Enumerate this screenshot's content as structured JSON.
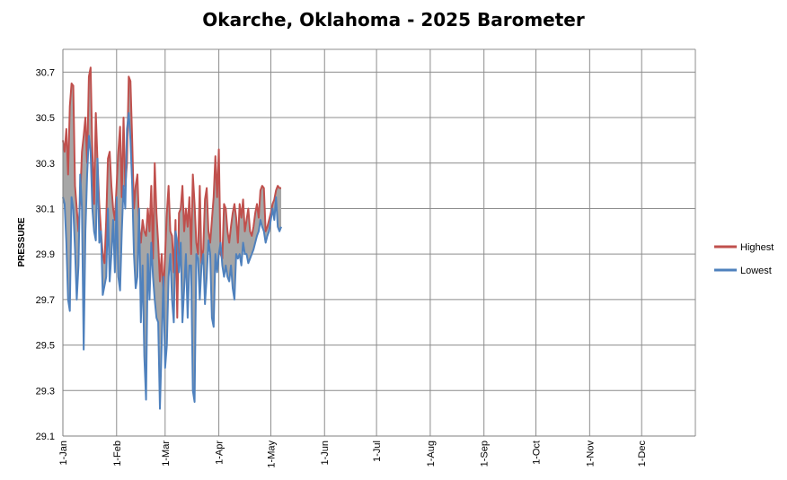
{
  "chart_data": {
    "type": "area",
    "title": "Okarche, Oklahoma - 2025 Barometer",
    "ylabel": "PRESSURE",
    "xlabel": "",
    "ylim": [
      29.1,
      30.8
    ],
    "y_ticks": [
      "29.1",
      "29.3",
      "29.5",
      "29.7",
      "29.9",
      "30.1",
      "30.3",
      "30.5",
      "30.7"
    ],
    "x_ticks": [
      {
        "label": "1-Jan",
        "day": 1
      },
      {
        "label": "1-Feb",
        "day": 32
      },
      {
        "label": "1-Mar",
        "day": 60
      },
      {
        "label": "1-Apr",
        "day": 91
      },
      {
        "label": "1-May",
        "day": 121
      },
      {
        "label": "1-Jun",
        "day": 152
      },
      {
        "label": "1-Jul",
        "day": 182
      },
      {
        "label": "1-Aug",
        "day": 213
      },
      {
        "label": "1-Sep",
        "day": 244
      },
      {
        "label": "1-Oct",
        "day": 274
      },
      {
        "label": "1-Nov",
        "day": 305
      },
      {
        "label": "1-Dec",
        "day": 335
      }
    ],
    "xlim": [
      1,
      366
    ],
    "grid": true,
    "legend_position": "right",
    "colors": {
      "highest": "#c0504d",
      "lowest": "#4f81bd",
      "fill": "#a6a6a6"
    },
    "series": [
      {
        "name": "Highest",
        "x": [
          1,
          2,
          3,
          4,
          5,
          6,
          7,
          8,
          9,
          10,
          11,
          12,
          13,
          14,
          15,
          16,
          17,
          18,
          19,
          20,
          21,
          22,
          23,
          24,
          25,
          26,
          27,
          28,
          29,
          30,
          31,
          32,
          33,
          34,
          35,
          36,
          37,
          38,
          39,
          40,
          41,
          42,
          43,
          44,
          45,
          46,
          47,
          48,
          49,
          50,
          51,
          52,
          53,
          54,
          55,
          56,
          57,
          58,
          59,
          60,
          61,
          62,
          63,
          64,
          65,
          66,
          67,
          68,
          69,
          70,
          71,
          72,
          73,
          74,
          75,
          76,
          77,
          78,
          79,
          80,
          81,
          82,
          83,
          84,
          85,
          86,
          87,
          88,
          89,
          90,
          91,
          92,
          93,
          94,
          95,
          96,
          97,
          98,
          99,
          100,
          101,
          102,
          103,
          104,
          105,
          106,
          107,
          108,
          109,
          110,
          111,
          112,
          113,
          114,
          115,
          116,
          117,
          118,
          119,
          120,
          121,
          122,
          123,
          124,
          125,
          126,
          127
        ],
        "values": [
          30.4,
          30.35,
          30.45,
          30.25,
          30.55,
          30.65,
          30.64,
          30.2,
          30.1,
          30.0,
          30.15,
          30.35,
          30.42,
          30.5,
          30.3,
          30.68,
          30.72,
          30.35,
          30.12,
          30.52,
          30.3,
          30.12,
          30.0,
          29.9,
          29.86,
          30.05,
          30.32,
          30.35,
          30.2,
          30.1,
          30.05,
          30.2,
          30.35,
          30.46,
          30.15,
          30.5,
          30.2,
          30.3,
          30.68,
          30.66,
          30.4,
          30.1,
          30.2,
          30.25,
          30.02,
          29.95,
          30.05,
          30.0,
          29.98,
          30.1,
          30.0,
          30.2,
          29.88,
          30.3,
          30.08,
          29.95,
          29.78,
          29.9,
          29.72,
          29.9,
          30.08,
          30.2,
          30.0,
          29.98,
          29.82,
          30.05,
          29.62,
          30.08,
          30.1,
          30.2,
          30.0,
          30.1,
          30.02,
          30.15,
          29.9,
          30.25,
          30.12,
          29.95,
          29.9,
          30.2,
          29.86,
          29.92,
          30.14,
          30.19,
          30.0,
          29.95,
          30.05,
          30.15,
          30.33,
          30.15,
          30.36,
          29.9,
          29.88,
          30.12,
          30.1,
          30.0,
          29.95,
          30.02,
          30.08,
          30.12,
          30.06,
          29.95,
          30.12,
          30.06,
          30.14,
          30.0,
          30.05,
          30.1,
          30.0,
          29.98,
          30.02,
          30.08,
          30.12,
          30.06,
          30.18,
          30.2,
          30.19,
          30.0,
          30.02,
          30.05,
          30.08,
          30.12,
          30.14,
          30.18,
          30.2,
          30.19,
          30.19
        ]
      },
      {
        "name": "Lowest",
        "x": [
          1,
          2,
          3,
          4,
          5,
          6,
          7,
          8,
          9,
          10,
          11,
          12,
          13,
          14,
          15,
          16,
          17,
          18,
          19,
          20,
          21,
          22,
          23,
          24,
          25,
          26,
          27,
          28,
          29,
          30,
          31,
          32,
          33,
          34,
          35,
          36,
          37,
          38,
          39,
          40,
          41,
          42,
          43,
          44,
          45,
          46,
          47,
          48,
          49,
          50,
          51,
          52,
          53,
          54,
          55,
          56,
          57,
          58,
          59,
          60,
          61,
          62,
          63,
          64,
          65,
          66,
          67,
          68,
          69,
          70,
          71,
          72,
          73,
          74,
          75,
          76,
          77,
          78,
          79,
          80,
          81,
          82,
          83,
          84,
          85,
          86,
          87,
          88,
          89,
          90,
          91,
          92,
          93,
          94,
          95,
          96,
          97,
          98,
          99,
          100,
          101,
          102,
          103,
          104,
          105,
          106,
          107,
          108,
          109,
          110,
          111,
          112,
          113,
          114,
          115,
          116,
          117,
          118,
          119,
          120,
          121,
          122,
          123,
          124,
          125,
          126,
          127
        ],
        "values": [
          30.15,
          30.12,
          29.95,
          29.7,
          29.65,
          30.15,
          30.1,
          29.92,
          29.7,
          29.85,
          30.25,
          30.1,
          29.48,
          30.0,
          30.25,
          30.42,
          30.35,
          30.1,
          30.0,
          29.96,
          30.32,
          29.95,
          30.0,
          29.72,
          29.76,
          29.8,
          30.1,
          29.78,
          29.9,
          30.05,
          29.82,
          30.15,
          29.8,
          29.74,
          30.0,
          30.2,
          30.1,
          30.45,
          30.52,
          30.4,
          30.2,
          29.9,
          29.75,
          29.8,
          30.1,
          29.6,
          29.85,
          29.45,
          29.26,
          29.9,
          29.7,
          29.95,
          29.8,
          29.7,
          29.62,
          29.6,
          29.22,
          29.5,
          29.8,
          29.4,
          29.5,
          29.8,
          29.9,
          29.7,
          29.6,
          30.0,
          29.95,
          29.82,
          29.95,
          29.6,
          29.75,
          29.9,
          29.62,
          29.85,
          29.85,
          29.3,
          29.25,
          29.9,
          29.88,
          29.7,
          29.85,
          29.9,
          29.68,
          29.8,
          29.96,
          29.9,
          29.62,
          29.58,
          29.9,
          29.82,
          29.9,
          29.95,
          29.85,
          29.8,
          29.85,
          29.8,
          29.78,
          29.85,
          29.75,
          29.7,
          29.9,
          29.88,
          29.9,
          29.85,
          29.95,
          29.9,
          29.9,
          29.86,
          29.88,
          29.9,
          29.92,
          29.95,
          29.98,
          30.0,
          30.05,
          30.02,
          30.0,
          29.95,
          29.98,
          30.0,
          30.05,
          30.1,
          30.05,
          30.15,
          30.02,
          30.0,
          30.02
        ]
      }
    ]
  }
}
